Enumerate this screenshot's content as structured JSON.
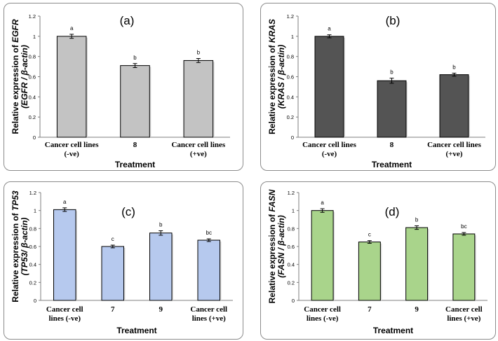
{
  "chart_data": [
    {
      "type": "bar",
      "panel_label": "(a)",
      "ylabel_line1": [
        "Relative expression of ",
        "EGFR"
      ],
      "ylabel_line2": "(EGFR / β-actin)",
      "xlabel": "Treatment",
      "categories": [
        [
          "Cancer cell lines",
          "(-ve)"
        ],
        [
          "8"
        ],
        [
          "Cancer cell lines",
          "(+ve)"
        ]
      ],
      "values": [
        1.0,
        0.71,
        0.76
      ],
      "errors": [
        0.02,
        0.02,
        0.02
      ],
      "letters": [
        "a",
        "b",
        "b"
      ],
      "yticks": [
        "0",
        "0.2",
        "0.4",
        "0.6",
        "0.8",
        "1",
        "1.2"
      ],
      "ylim": [
        0,
        1.2
      ],
      "bar_color": "#c3c3c3"
    },
    {
      "type": "bar",
      "panel_label": "(b)",
      "ylabel_line1": [
        "Relative expression of ",
        "KRAS"
      ],
      "ylabel_line2": "(KRAS / β-actin)",
      "xlabel": "Treatment",
      "categories": [
        [
          "Cancer cell lines",
          "(-ve)"
        ],
        [
          "8"
        ],
        [
          "Cancer cell lines",
          "(+ve)"
        ]
      ],
      "values": [
        1.0,
        0.56,
        0.62
      ],
      "errors": [
        0.015,
        0.025,
        0.015
      ],
      "letters": [
        "a",
        "b",
        "b"
      ],
      "yticks": [
        "0",
        "0.2",
        "0.4",
        "0.6",
        "0.8",
        "1",
        "1.2"
      ],
      "ylim": [
        0,
        1.2
      ],
      "bar_color": "#545454"
    },
    {
      "type": "bar",
      "panel_label": "(c)",
      "ylabel_line1": [
        "Relative expression of ",
        "TP53"
      ],
      "ylabel_line2": "(TP53/ β-actin)",
      "xlabel": "Treatment",
      "categories": [
        [
          "Cancer cell",
          "lines (-ve)"
        ],
        [
          "7"
        ],
        [
          "9"
        ],
        [
          "Cancer cell",
          "lines (+ve)"
        ]
      ],
      "values": [
        1.01,
        0.6,
        0.75,
        0.67
      ],
      "errors": [
        0.02,
        0.015,
        0.025,
        0.015
      ],
      "letters": [
        "a",
        "c",
        "b",
        "bc"
      ],
      "yticks": [
        "0",
        "0.2",
        "0.4",
        "0.6",
        "0.8",
        "1",
        "1.2"
      ],
      "ylim": [
        0,
        1.2
      ],
      "bar_color": "#b6c9ee"
    },
    {
      "type": "bar",
      "panel_label": "(d)",
      "ylabel_line1": [
        "Relative expression of ",
        "FASN"
      ],
      "ylabel_line2": "(FASN / β-actin)",
      "xlabel": "Treatment",
      "categories": [
        [
          "Cancer cell",
          "lines (-ve)"
        ],
        [
          "7"
        ],
        [
          "9"
        ],
        [
          "Cancer cell",
          "lines (+ve)"
        ]
      ],
      "values": [
        1.0,
        0.65,
        0.81,
        0.74
      ],
      "errors": [
        0.02,
        0.015,
        0.02,
        0.015
      ],
      "letters": [
        "a",
        "c",
        "b",
        "bc"
      ],
      "yticks": [
        "0",
        "0.2",
        "0.4",
        "0.6",
        "0.8",
        "1",
        "1.2"
      ],
      "ylim": [
        0,
        1.2
      ],
      "bar_color": "#a9d48b"
    }
  ]
}
